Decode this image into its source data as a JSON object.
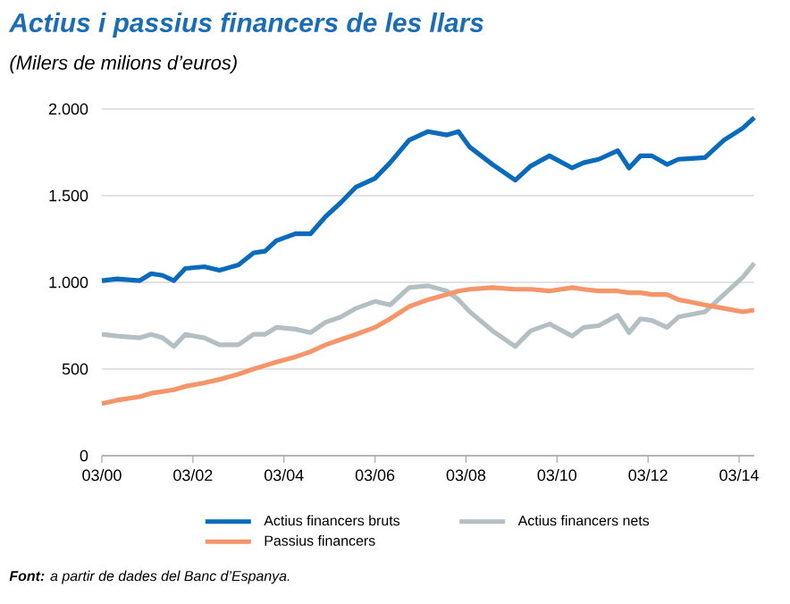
{
  "chart_data": {
    "type": "line",
    "title": "Actius i passius financers de les llars",
    "subtitle": "(Milers de milions d’euros)",
    "annotations": [
      "**Font:** a partir de dades del Banc d’Espanya."
    ],
    "x": [
      "2000-03",
      "2000-07",
      "2001-01",
      "2001-04",
      "2001-07",
      "2001-10",
      "2002-01",
      "2002-06",
      "2002-10",
      "2003-03",
      "2003-07",
      "2003-10",
      "2004-01",
      "2004-06",
      "2004-10",
      "2005-02",
      "2005-06",
      "2005-10",
      "2006-03",
      "2006-07",
      "2006-12",
      "2007-05",
      "2007-10",
      "2008-01",
      "2008-04",
      "2008-10",
      "2009-04",
      "2009-08",
      "2010-01",
      "2010-07",
      "2010-10",
      "2011-02",
      "2011-07",
      "2011-10",
      "2012-01",
      "2012-04",
      "2012-08",
      "2012-11",
      "2013-06",
      "2013-11",
      "2014-04",
      "2014-07"
    ],
    "xlim": [
      "2000-03",
      "2014-07"
    ],
    "xticks": [
      {
        "value": "2000-03",
        "label": "03/00"
      },
      {
        "value": "2002-03",
        "label": "03/02"
      },
      {
        "value": "2004-03",
        "label": "03/04"
      },
      {
        "value": "2006-03",
        "label": "03/06"
      },
      {
        "value": "2008-03",
        "label": "03/08"
      },
      {
        "value": "2010-03",
        "label": "03/10"
      },
      {
        "value": "2012-03",
        "label": "03/12"
      },
      {
        "value": "2014-03",
        "label": "03/14"
      }
    ],
    "ylim": [
      0,
      2000
    ],
    "yticks": [
      0,
      500,
      {
        "value": 1000,
        "label": "1.000"
      },
      {
        "value": 1500,
        "label": "1.500"
      },
      {
        "value": 2000,
        "label": "2.000"
      }
    ],
    "grid": "y",
    "legend": "bottom",
    "series": [
      {
        "name": "Actius financers bruts",
        "color": "#0a6bbd",
        "values": [
          1010,
          1020,
          1010,
          1050,
          1040,
          1010,
          1080,
          1090,
          1070,
          1100,
          1170,
          1180,
          1240,
          1280,
          1280,
          1380,
          1460,
          1550,
          1600,
          1690,
          1820,
          1870,
          1850,
          1870,
          1780,
          1680,
          1590,
          1670,
          1730,
          1660,
          1690,
          1710,
          1760,
          1660,
          1730,
          1730,
          1680,
          1710,
          1720,
          1820,
          1890,
          1950
        ]
      },
      {
        "name": "Actius financers nets",
        "color": "#b4bfc3",
        "values": [
          700,
          690,
          680,
          700,
          680,
          630,
          700,
          680,
          640,
          640,
          700,
          700,
          740,
          730,
          710,
          770,
          800,
          850,
          890,
          870,
          970,
          980,
          950,
          900,
          830,
          720,
          630,
          720,
          760,
          690,
          740,
          750,
          810,
          710,
          790,
          780,
          740,
          800,
          830,
          930,
          1030,
          1110
        ]
      },
      {
        "name": "Passius financers",
        "color": "#f4956a",
        "values": [
          300,
          320,
          340,
          360,
          370,
          380,
          400,
          420,
          440,
          470,
          500,
          520,
          540,
          570,
          600,
          640,
          670,
          700,
          740,
          790,
          860,
          900,
          930,
          950,
          960,
          970,
          960,
          960,
          950,
          970,
          960,
          950,
          950,
          940,
          940,
          930,
          930,
          900,
          870,
          850,
          830,
          840
        ]
      }
    ]
  }
}
